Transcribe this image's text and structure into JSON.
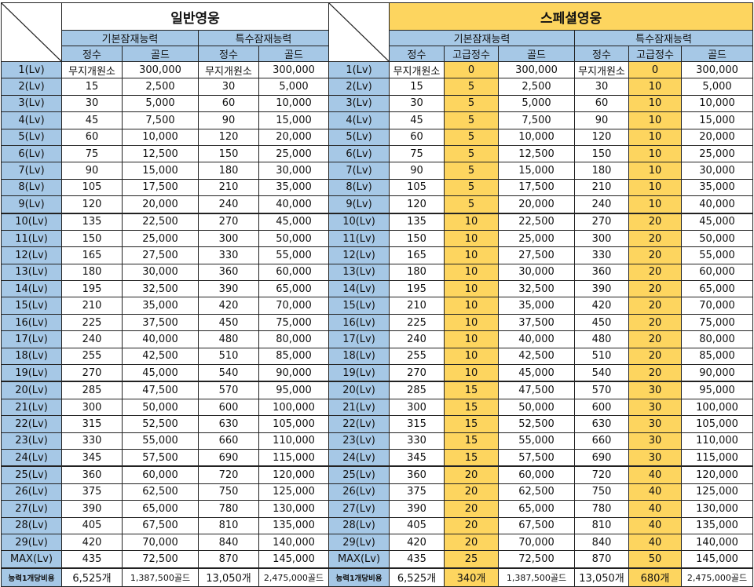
{
  "titles": {
    "normal": "일반영웅",
    "special": "스페셜영웅"
  },
  "groups": {
    "basic": "기본잠재능력",
    "special": "특수잠재능력"
  },
  "columns": {
    "jeongsu": "정수",
    "gold": "골드",
    "advanced": "고급정수"
  },
  "rows": [
    {
      "lv": "1(Lv)",
      "nbj": "무지개원소",
      "nbg": "300,000",
      "nsj": "무지개원소",
      "nsg": "300,000",
      "sbj": "무지개원소",
      "sba": "0",
      "sbg": "300,000",
      "ssj": "무지개원소",
      "ssa": "0",
      "ssg": "300,000"
    },
    {
      "lv": "2(Lv)",
      "nbj": "15",
      "nbg": "2,500",
      "nsj": "30",
      "nsg": "5,000",
      "sbj": "15",
      "sba": "5",
      "sbg": "2,500",
      "ssj": "30",
      "ssa": "10",
      "ssg": "5,000"
    },
    {
      "lv": "3(Lv)",
      "nbj": "30",
      "nbg": "5,000",
      "nsj": "60",
      "nsg": "10,000",
      "sbj": "30",
      "sba": "5",
      "sbg": "5,000",
      "ssj": "60",
      "ssa": "10",
      "ssg": "10,000"
    },
    {
      "lv": "4(Lv)",
      "nbj": "45",
      "nbg": "7,500",
      "nsj": "90",
      "nsg": "15,000",
      "sbj": "45",
      "sba": "5",
      "sbg": "7,500",
      "ssj": "90",
      "ssa": "10",
      "ssg": "15,000"
    },
    {
      "lv": "5(Lv)",
      "nbj": "60",
      "nbg": "10,000",
      "nsj": "120",
      "nsg": "20,000",
      "sbj": "60",
      "sba": "5",
      "sbg": "10,000",
      "ssj": "120",
      "ssa": "10",
      "ssg": "20,000"
    },
    {
      "lv": "6(Lv)",
      "nbj": "75",
      "nbg": "12,500",
      "nsj": "150",
      "nsg": "25,000",
      "sbj": "75",
      "sba": "5",
      "sbg": "12,500",
      "ssj": "150",
      "ssa": "10",
      "ssg": "25,000"
    },
    {
      "lv": "7(Lv)",
      "nbj": "90",
      "nbg": "15,000",
      "nsj": "180",
      "nsg": "30,000",
      "sbj": "90",
      "sba": "5",
      "sbg": "15,000",
      "ssj": "180",
      "ssa": "10",
      "ssg": "30,000"
    },
    {
      "lv": "8(Lv)",
      "nbj": "105",
      "nbg": "17,500",
      "nsj": "210",
      "nsg": "35,000",
      "sbj": "105",
      "sba": "5",
      "sbg": "17,500",
      "ssj": "210",
      "ssa": "10",
      "ssg": "35,000"
    },
    {
      "lv": "9(Lv)",
      "nbj": "120",
      "nbg": "20,000",
      "nsj": "240",
      "nsg": "40,000",
      "sbj": "120",
      "sba": "5",
      "sbg": "20,000",
      "ssj": "240",
      "ssa": "10",
      "ssg": "40,000"
    },
    {
      "lv": "10(Lv)",
      "nbj": "135",
      "nbg": "22,500",
      "nsj": "270",
      "nsg": "45,000",
      "sbj": "135",
      "sba": "10",
      "sbg": "22,500",
      "ssj": "270",
      "ssa": "20",
      "ssg": "45,000"
    },
    {
      "lv": "11(Lv)",
      "nbj": "150",
      "nbg": "25,000",
      "nsj": "300",
      "nsg": "50,000",
      "sbj": "150",
      "sba": "10",
      "sbg": "25,000",
      "ssj": "300",
      "ssa": "20",
      "ssg": "50,000"
    },
    {
      "lv": "12(Lv)",
      "nbj": "165",
      "nbg": "27,500",
      "nsj": "330",
      "nsg": "55,000",
      "sbj": "165",
      "sba": "10",
      "sbg": "27,500",
      "ssj": "330",
      "ssa": "20",
      "ssg": "55,000"
    },
    {
      "lv": "13(Lv)",
      "nbj": "180",
      "nbg": "30,000",
      "nsj": "360",
      "nsg": "60,000",
      "sbj": "180",
      "sba": "10",
      "sbg": "30,000",
      "ssj": "360",
      "ssa": "20",
      "ssg": "60,000"
    },
    {
      "lv": "14(Lv)",
      "nbj": "195",
      "nbg": "32,500",
      "nsj": "390",
      "nsg": "65,000",
      "sbj": "195",
      "sba": "10",
      "sbg": "32,500",
      "ssj": "390",
      "ssa": "20",
      "ssg": "65,000"
    },
    {
      "lv": "15(Lv)",
      "nbj": "210",
      "nbg": "35,000",
      "nsj": "420",
      "nsg": "70,000",
      "sbj": "210",
      "sba": "10",
      "sbg": "35,000",
      "ssj": "420",
      "ssa": "20",
      "ssg": "70,000"
    },
    {
      "lv": "16(Lv)",
      "nbj": "225",
      "nbg": "37,500",
      "nsj": "450",
      "nsg": "75,000",
      "sbj": "225",
      "sba": "10",
      "sbg": "37,500",
      "ssj": "450",
      "ssa": "20",
      "ssg": "75,000"
    },
    {
      "lv": "17(Lv)",
      "nbj": "240",
      "nbg": "40,000",
      "nsj": "480",
      "nsg": "80,000",
      "sbj": "240",
      "sba": "10",
      "sbg": "40,000",
      "ssj": "480",
      "ssa": "20",
      "ssg": "80,000"
    },
    {
      "lv": "18(Lv)",
      "nbj": "255",
      "nbg": "42,500",
      "nsj": "510",
      "nsg": "85,000",
      "sbj": "255",
      "sba": "10",
      "sbg": "42,500",
      "ssj": "510",
      "ssa": "20",
      "ssg": "85,000"
    },
    {
      "lv": "19(Lv)",
      "nbj": "270",
      "nbg": "45,000",
      "nsj": "540",
      "nsg": "90,000",
      "sbj": "270",
      "sba": "10",
      "sbg": "45,000",
      "ssj": "540",
      "ssa": "20",
      "ssg": "90,000"
    },
    {
      "lv": "20(Lv)",
      "nbj": "285",
      "nbg": "47,500",
      "nsj": "570",
      "nsg": "95,000",
      "sbj": "285",
      "sba": "15",
      "sbg": "47,500",
      "ssj": "570",
      "ssa": "30",
      "ssg": "95,000"
    },
    {
      "lv": "21(Lv)",
      "nbj": "300",
      "nbg": "50,000",
      "nsj": "600",
      "nsg": "100,000",
      "sbj": "300",
      "sba": "15",
      "sbg": "50,000",
      "ssj": "600",
      "ssa": "30",
      "ssg": "100,000"
    },
    {
      "lv": "22(Lv)",
      "nbj": "315",
      "nbg": "52,500",
      "nsj": "630",
      "nsg": "105,000",
      "sbj": "315",
      "sba": "15",
      "sbg": "52,500",
      "ssj": "630",
      "ssa": "30",
      "ssg": "105,000"
    },
    {
      "lv": "23(Lv)",
      "nbj": "330",
      "nbg": "55,000",
      "nsj": "660",
      "nsg": "110,000",
      "sbj": "330",
      "sba": "15",
      "sbg": "55,000",
      "ssj": "660",
      "ssa": "30",
      "ssg": "110,000"
    },
    {
      "lv": "24(Lv)",
      "nbj": "345",
      "nbg": "57,500",
      "nsj": "690",
      "nsg": "115,000",
      "sbj": "345",
      "sba": "15",
      "sbg": "57,500",
      "ssj": "690",
      "ssa": "30",
      "ssg": "115,000"
    },
    {
      "lv": "25(Lv)",
      "nbj": "360",
      "nbg": "60,000",
      "nsj": "720",
      "nsg": "120,000",
      "sbj": "360",
      "sba": "20",
      "sbg": "60,000",
      "ssj": "720",
      "ssa": "40",
      "ssg": "120,000"
    },
    {
      "lv": "26(Lv)",
      "nbj": "375",
      "nbg": "62,500",
      "nsj": "750",
      "nsg": "125,000",
      "sbj": "375",
      "sba": "20",
      "sbg": "62,500",
      "ssj": "750",
      "ssa": "40",
      "ssg": "125,000"
    },
    {
      "lv": "27(Lv)",
      "nbj": "390",
      "nbg": "65,000",
      "nsj": "780",
      "nsg": "130,000",
      "sbj": "390",
      "sba": "20",
      "sbg": "65,000",
      "ssj": "780",
      "ssa": "40",
      "ssg": "130,000"
    },
    {
      "lv": "28(Lv)",
      "nbj": "405",
      "nbg": "67,500",
      "nsj": "810",
      "nsg": "135,000",
      "sbj": "405",
      "sba": "20",
      "sbg": "67,500",
      "ssj": "810",
      "ssa": "40",
      "ssg": "135,000"
    },
    {
      "lv": "29(Lv)",
      "nbj": "420",
      "nbg": "70,000",
      "nsj": "840",
      "nsg": "140,000",
      "sbj": "420",
      "sba": "20",
      "sbg": "70,000",
      "ssj": "840",
      "ssa": "40",
      "ssg": "140,000"
    },
    {
      "lv": "MAX(Lv)",
      "nbj": "435",
      "nbg": "72,500",
      "nsj": "870",
      "nsg": "145,000",
      "sbj": "435",
      "sba": "25",
      "sbg": "72,500",
      "ssj": "870",
      "ssa": "50",
      "ssg": "145,000"
    }
  ],
  "footer": {
    "label": "능력1개당비용",
    "nbj": "6,525개",
    "nbg": "1,387,500골드",
    "nsj": "13,050개",
    "nsg": "2,475,000골드",
    "sbj": "6,525개",
    "sba": "340개",
    "sbg": "1,387,500골드",
    "ssj": "13,050개",
    "ssa": "680개",
    "ssg": "2,475,000골드"
  },
  "colors": {
    "blue_header": "#a6c8e6",
    "gold": "#fdd55f"
  }
}
